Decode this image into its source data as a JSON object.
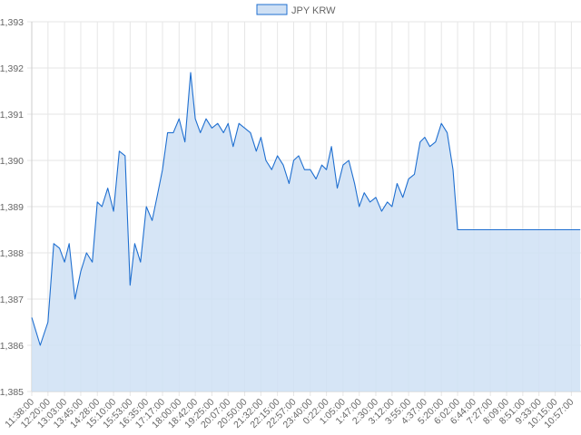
{
  "chart_data": {
    "type": "area",
    "title": "",
    "xlabel": "",
    "ylabel": "",
    "ylim": [
      1385,
      1393
    ],
    "y_ticks": [
      "1,385",
      "1,386",
      "1,387",
      "1,388",
      "1,389",
      "1,390",
      "1,391",
      "1,392",
      "1,393"
    ],
    "grid": true,
    "legend_position": "top-center",
    "colors": {
      "line": "#1f6fd0",
      "fill": "#cfe0f4",
      "grid": "#e6e6e6",
      "axis_text": "#666666"
    },
    "x_ticks": [
      "11:38:00",
      "12:20:00",
      "13:03:00",
      "13:45:00",
      "14:28:00",
      "15:10:00",
      "15:53:00",
      "16:35:00",
      "17:17:00",
      "18:00:00",
      "18:42:00",
      "19:25:00",
      "20:07:00",
      "20:50:00",
      "21:32:00",
      "22:15:00",
      "22:57:00",
      "23:40:00",
      "0:22:00",
      "1:05:00",
      "1:47:00",
      "2:30:00",
      "3:12:00",
      "3:55:00",
      "4:37:00",
      "5:20:00",
      "6:02:00",
      "6:44:00",
      "7:27:00",
      "8:09:00",
      "8:51:00",
      "9:33:00",
      "10:15:00",
      "10:57:00"
    ],
    "series": [
      {
        "name": "JPY KRW",
        "x": [
          "11:38:00",
          "12:00:00",
          "12:20:00",
          "12:35:00",
          "12:50:00",
          "13:03:00",
          "13:15:00",
          "13:30:00",
          "13:45:00",
          "14:00:00",
          "14:15:00",
          "14:28:00",
          "14:40:00",
          "14:55:00",
          "15:10:00",
          "15:25:00",
          "15:40:00",
          "15:53:00",
          "16:05:00",
          "16:20:00",
          "16:35:00",
          "16:50:00",
          "17:05:00",
          "17:17:00",
          "17:30:00",
          "17:45:00",
          "18:00:00",
          "18:15:00",
          "18:30:00",
          "18:42:00",
          "18:55:00",
          "19:10:00",
          "19:25:00",
          "19:40:00",
          "19:55:00",
          "20:07:00",
          "20:20:00",
          "20:35:00",
          "20:50:00",
          "21:05:00",
          "21:20:00",
          "21:32:00",
          "21:45:00",
          "22:00:00",
          "22:15:00",
          "22:30:00",
          "22:45:00",
          "22:57:00",
          "23:10:00",
          "23:25:00",
          "23:40:00",
          "23:55:00",
          "0:10:00",
          "0:22:00",
          "0:35:00",
          "0:50:00",
          "1:05:00",
          "1:20:00",
          "1:35:00",
          "1:47:00",
          "2:00:00",
          "2:15:00",
          "2:30:00",
          "2:45:00",
          "3:00:00",
          "3:12:00",
          "3:25:00",
          "3:40:00",
          "3:55:00",
          "4:10:00",
          "4:25:00",
          "4:37:00",
          "4:50:00",
          "5:05:00",
          "5:20:00",
          "5:35:00",
          "5:50:00",
          "6:02:00",
          "6:44:00",
          "7:27:00",
          "8:09:00",
          "8:51:00",
          "9:33:00",
          "10:15:00",
          "10:57:00",
          "11:20:00"
        ],
        "values": [
          1386.6,
          1386.0,
          1386.5,
          1388.2,
          1388.1,
          1387.8,
          1388.2,
          1387.0,
          1387.6,
          1388.0,
          1387.8,
          1389.1,
          1389.0,
          1389.4,
          1388.9,
          1390.2,
          1390.1,
          1387.3,
          1388.2,
          1387.8,
          1389.0,
          1388.7,
          1389.3,
          1389.8,
          1390.6,
          1390.6,
          1390.9,
          1390.4,
          1391.9,
          1390.9,
          1390.6,
          1390.9,
          1390.7,
          1390.8,
          1390.6,
          1390.8,
          1390.3,
          1390.8,
          1390.7,
          1390.6,
          1390.2,
          1390.5,
          1390.0,
          1389.8,
          1390.1,
          1389.9,
          1389.5,
          1390.0,
          1390.1,
          1389.8,
          1389.8,
          1389.6,
          1389.9,
          1389.8,
          1390.3,
          1389.4,
          1389.9,
          1390.0,
          1389.5,
          1389.0,
          1389.3,
          1389.1,
          1389.2,
          1388.9,
          1389.1,
          1389.0,
          1389.5,
          1389.2,
          1389.6,
          1389.7,
          1390.4,
          1390.5,
          1390.3,
          1390.4,
          1390.8,
          1390.6,
          1389.8,
          1388.5,
          1388.5,
          1388.5,
          1388.5,
          1388.5,
          1388.5,
          1388.5,
          1388.5,
          1388.5
        ]
      }
    ]
  }
}
